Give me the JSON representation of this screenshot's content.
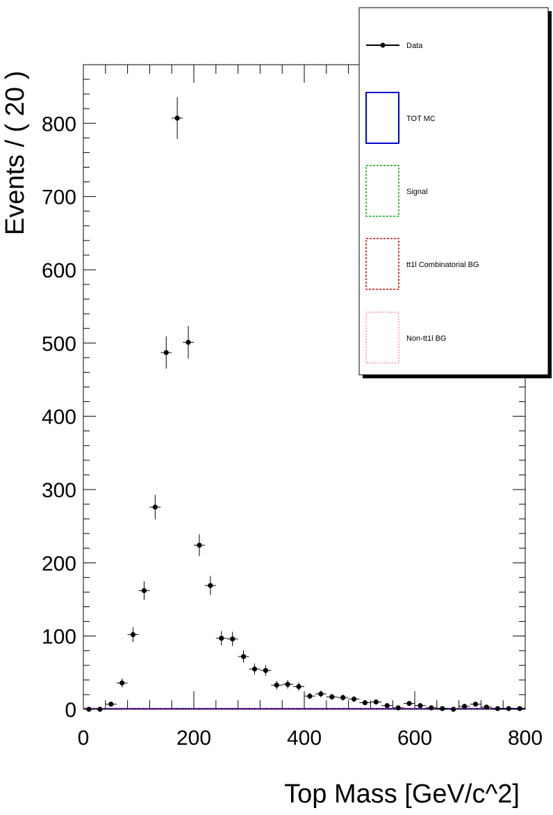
{
  "chart_data": {
    "type": "scatter",
    "title": "",
    "xlabel": "Top Mass [GeV/c^2]",
    "ylabel": "Events / ( 20 )",
    "xlim": [
      0,
      800
    ],
    "ylim": [
      0,
      880
    ],
    "x_ticks": [
      0,
      200,
      400,
      600,
      800
    ],
    "y_ticks": [
      0,
      100,
      200,
      300,
      400,
      500,
      600,
      700,
      800
    ],
    "x_tick_labels": [
      "0",
      "200",
      "400",
      "600",
      "800"
    ],
    "y_tick_labels": [
      "0",
      "100",
      "200",
      "300",
      "400",
      "500",
      "600",
      "700",
      "800"
    ],
    "bin_width": 20,
    "grid": false,
    "legend_placement": "top-right",
    "series": [
      {
        "name": "Data",
        "style": "points-with-error-bars",
        "color": "#000000",
        "x": [
          10,
          30,
          50,
          70,
          90,
          110,
          130,
          150,
          170,
          190,
          210,
          230,
          250,
          270,
          290,
          310,
          330,
          350,
          370,
          390,
          410,
          430,
          450,
          470,
          490,
          510,
          530,
          550,
          570,
          590,
          610,
          630,
          650,
          670,
          690,
          710,
          730,
          750,
          770,
          790
        ],
        "y": [
          0,
          0,
          7,
          36,
          102,
          162,
          276,
          487,
          807,
          501,
          224,
          169,
          97,
          96,
          72,
          55,
          53,
          33,
          34,
          31,
          18,
          21,
          17,
          16,
          14,
          9,
          10,
          5,
          2,
          8,
          5,
          2,
          1,
          0,
          4,
          7,
          3,
          1,
          1,
          1
        ]
      },
      {
        "name": "TOT MC",
        "style": "line",
        "color": "#0000cc"
      },
      {
        "name": "Signal",
        "style": "dashed-line",
        "color": "#00aa00"
      },
      {
        "name": "tt1l Combinatorial BG",
        "style": "dashed-line",
        "color": "#dd0000"
      },
      {
        "name": "Non-tt1l BG",
        "style": "dotted-line",
        "color": "#ff6666"
      }
    ]
  }
}
